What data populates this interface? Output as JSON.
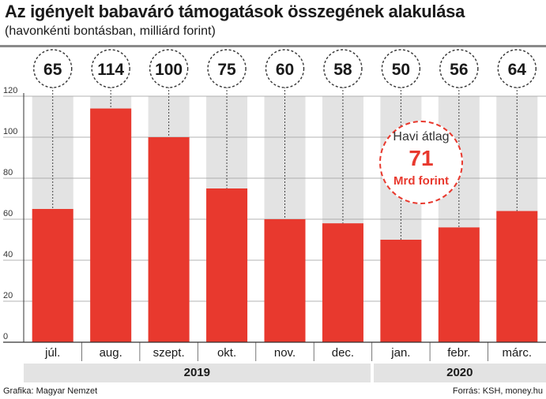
{
  "header": {
    "title": "Az igényelt babaváró támogatások összegének alakulása",
    "subtitle": "(havonkénti bontásban, milliárd forint)"
  },
  "chart_data": {
    "type": "bar",
    "title": "Az igényelt babaváró támogatások összegének alakulása",
    "subtitle": "(havonkénti bontásban, milliárd forint)",
    "categories": [
      "júl.",
      "aug.",
      "szept.",
      "okt.",
      "nov.",
      "dec.",
      "jan.",
      "febr.",
      "márc."
    ],
    "values": [
      65,
      114,
      100,
      75,
      60,
      58,
      50,
      56,
      64
    ],
    "data_labels": [
      "65",
      "114",
      "100",
      "75",
      "60",
      "58",
      "50",
      "56",
      "64"
    ],
    "ylim": [
      0,
      120
    ],
    "yticks": [
      0,
      20,
      40,
      60,
      80,
      100,
      120
    ],
    "ytick_labels": [
      "0",
      "20",
      "40",
      "60",
      "80",
      "100",
      "120"
    ],
    "groups": [
      {
        "label": "2019",
        "months": 6
      },
      {
        "label": "2020",
        "months": 3
      }
    ],
    "annotation": {
      "label": "Havi átlag",
      "value": "71",
      "unit": "Mrd forint"
    },
    "grid": true,
    "bar_color": "#e8392e",
    "column_shade": "#e3e3e3"
  },
  "footer": {
    "left": "Grafika: Magyar Nemzet",
    "right": "Forrás: KSH, money.hu"
  }
}
